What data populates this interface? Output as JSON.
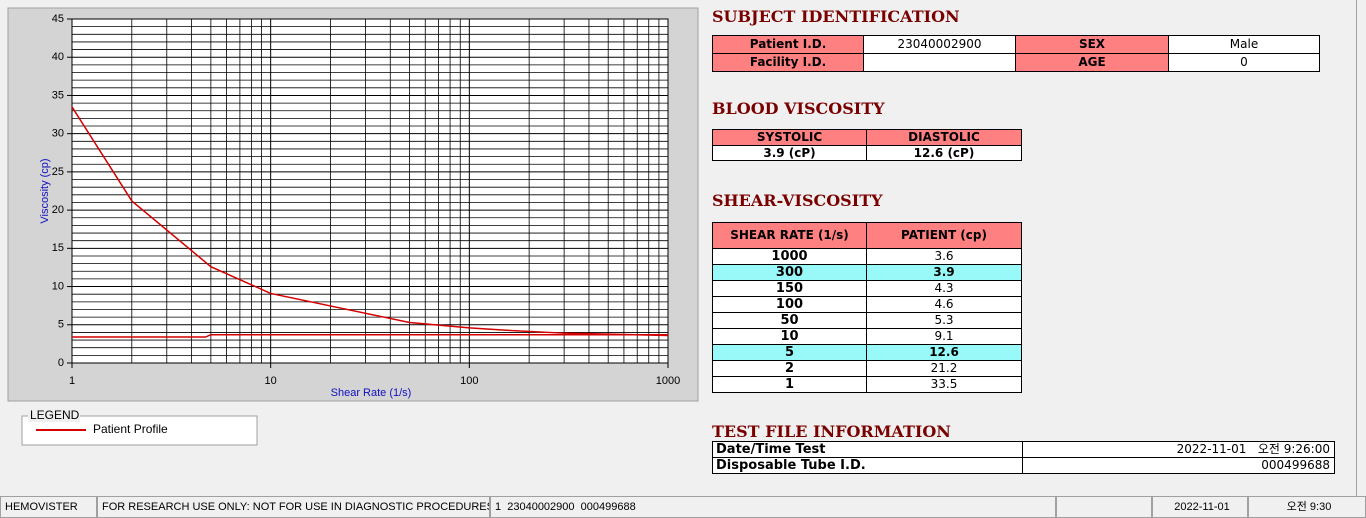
{
  "chart_data": {
    "type": "line",
    "xscale": "log",
    "grid": true,
    "x_label": "Shear Rate (1/s)",
    "y_label": "Viscosity (cp)",
    "xlim": [
      1,
      1000
    ],
    "xticks": [
      1,
      10,
      100,
      1000
    ],
    "xminorticks": [
      2,
      3,
      4,
      5,
      6,
      7,
      8,
      9,
      20,
      30,
      40,
      50,
      60,
      70,
      80,
      90,
      200,
      300,
      400,
      500,
      600,
      700,
      800,
      900
    ],
    "ylim": [
      0,
      45
    ],
    "yticks": [
      0,
      5,
      10,
      15,
      20,
      25,
      30,
      35,
      40,
      45
    ],
    "yminorticks": [
      1,
      2,
      3,
      4,
      6,
      7,
      8,
      9,
      11,
      12,
      13,
      14,
      16,
      17,
      18,
      19,
      21,
      22,
      23,
      24,
      26,
      27,
      28,
      29,
      31,
      32,
      33,
      34,
      36,
      37,
      38,
      39,
      41,
      42,
      43,
      44
    ],
    "legend_title": "LEGEND",
    "series": [
      {
        "name": "Patient Profile",
        "color": "#d40000",
        "x": [
          1,
          2,
          5,
          10,
          50,
          100,
          150,
          300,
          1000
        ],
        "values": [
          33.5,
          21.2,
          12.6,
          9.1,
          5.3,
          4.6,
          4.3,
          3.9,
          3.6
        ]
      },
      {
        "color": "#d40000",
        "x": [
          1,
          4.7,
          5,
          1000
        ],
        "values": [
          3.4,
          3.4,
          3.7,
          3.7
        ]
      }
    ]
  },
  "subject_identification": {
    "title": "SUBJECT IDENTIFICATION",
    "patient_id_label": "Patient I.D.",
    "patient_id": "23040002900",
    "sex_label": "SEX",
    "sex": "Male",
    "facility_id_label": "Facility I.D.",
    "age_label": "AGE",
    "age": 0
  },
  "blood_viscosity": {
    "title": "BLOOD VISCOSITY",
    "headers": [
      "SYSTOLIC",
      "DIASTOLIC"
    ],
    "values": [
      "3.9 (cP)",
      "12.6 (cP)"
    ]
  },
  "shear_viscosity": {
    "title": "SHEAR-VISCOSITY",
    "headers": [
      "SHEAR RATE (1/s)",
      "PATIENT (cp)"
    ],
    "highlight_rows": [
      1,
      6
    ],
    "rows": [
      [
        1000,
        3.6
      ],
      [
        300,
        3.9
      ],
      [
        150,
        4.3
      ],
      [
        100,
        4.6
      ],
      [
        50,
        5.3
      ],
      [
        10,
        9.1
      ],
      [
        5,
        12.6
      ],
      [
        2,
        21.2
      ],
      [
        1,
        33.5
      ]
    ]
  },
  "test_file_information": {
    "title": "TEST FILE INFORMATION",
    "rows": [
      [
        "Date/Time Test",
        "2022-11-01   오전 9:26:00"
      ],
      [
        "Disposable Tube I.D.",
        "000499688"
      ]
    ]
  },
  "status_bar": [
    "HEMOVISTER",
    "FOR RESEARCH USE ONLY: NOT FOR USE IN DIAGNOSTIC PROCEDURES",
    "1  23040002900  000499688",
    "2022-11-01",
    "오전 9:30"
  ]
}
